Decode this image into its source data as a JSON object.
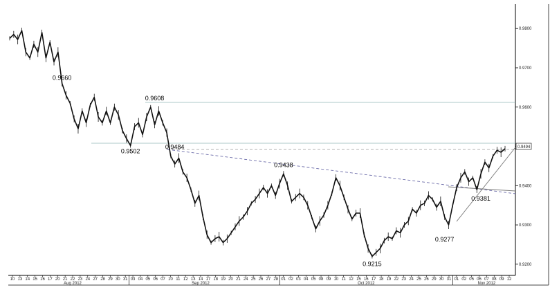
{
  "chart_data": {
    "type": "line",
    "yticks": [
      "0.9200",
      "0.9300",
      "0.9400",
      "0.9500",
      "0.9600",
      "0.9700",
      "0.9800"
    ],
    "ylim": [
      0.9175,
      0.9855
    ],
    "current_price_label": "0.9494",
    "x_day_labels": [
      "10",
      "13",
      "14",
      "15",
      "16",
      "17",
      "20",
      "21",
      "22",
      "23",
      "24",
      "27",
      "28",
      "29",
      "30",
      "31",
      "03",
      "04",
      "05",
      "06",
      "07",
      "10",
      "11",
      "12",
      "13",
      "14",
      "17",
      "18",
      "19",
      "20",
      "21",
      "24",
      "25",
      "26",
      "27",
      "28",
      "01",
      "02",
      "03",
      "04",
      "05",
      "08",
      "09",
      "10",
      "11",
      "12",
      "15",
      "16",
      "17",
      "18",
      "19",
      "22",
      "23",
      "24",
      "25",
      "26",
      "29",
      "30",
      "31",
      "01",
      "02",
      "05",
      "06",
      "07",
      "08",
      "09",
      "12"
    ],
    "x_month_labels": [
      {
        "label": "Aug 2012",
        "at_index": 8
      },
      {
        "label": "Sep 2012",
        "at_index": 25
      },
      {
        "label": "Oct 2012",
        "at_index": 47
      },
      {
        "label": "Nov 2012",
        "at_index": 63
      }
    ],
    "month_separator_indices": [
      15.5,
      35.5,
      58.5
    ],
    "series": [
      {
        "values": [
          [
            0,
            0.9775
          ],
          [
            1,
            0.9785
          ],
          [
            2,
            0.9772
          ],
          [
            3,
            0.9795
          ],
          [
            4,
            0.974
          ],
          [
            5,
            0.9725
          ],
          [
            6,
            0.976
          ],
          [
            7,
            0.974
          ],
          [
            8,
            0.979
          ],
          [
            9,
            0.9725
          ],
          [
            10,
            0.9765
          ],
          [
            11,
            0.9715
          ],
          [
            12,
            0.974
          ],
          [
            13,
            0.966
          ],
          [
            14,
            0.963
          ],
          [
            15,
            0.961
          ],
          [
            16,
            0.957
          ],
          [
            17,
            0.9545
          ],
          [
            18,
            0.959
          ],
          [
            19,
            0.956
          ],
          [
            20,
            0.9605
          ],
          [
            21,
            0.9625
          ],
          [
            22,
            0.9575
          ],
          [
            23,
            0.956
          ],
          [
            24,
            0.959
          ],
          [
            25,
            0.956
          ],
          [
            26,
            0.96
          ],
          [
            27,
            0.958
          ],
          [
            28,
            0.954
          ],
          [
            29,
            0.952
          ],
          [
            30,
            0.9502
          ],
          [
            31,
            0.955
          ],
          [
            32,
            0.956
          ],
          [
            33,
            0.953
          ],
          [
            34,
            0.9575
          ],
          [
            35,
            0.96
          ],
          [
            36,
            0.9555
          ],
          [
            37,
            0.959
          ],
          [
            38,
            0.956
          ],
          [
            39,
            0.9535
          ],
          [
            40,
            0.9475
          ],
          [
            41,
            0.9455
          ],
          [
            42,
            0.947
          ],
          [
            43,
            0.9435
          ],
          [
            44,
            0.942
          ],
          [
            45,
            0.939
          ],
          [
            46,
            0.9355
          ],
          [
            47,
            0.9375
          ],
          [
            48,
            0.932
          ],
          [
            49,
            0.9275
          ],
          [
            50,
            0.9255
          ],
          [
            51,
            0.9265
          ],
          [
            52,
            0.927
          ],
          [
            53,
            0.9255
          ],
          [
            54,
            0.9265
          ],
          [
            55,
            0.928
          ],
          [
            56,
            0.9295
          ],
          [
            57,
            0.931
          ],
          [
            58,
            0.932
          ],
          [
            59,
            0.9335
          ],
          [
            60,
            0.9355
          ],
          [
            61,
            0.9365
          ],
          [
            62,
            0.938
          ],
          [
            63,
            0.9395
          ],
          [
            64,
            0.938
          ],
          [
            65,
            0.94
          ],
          [
            66,
            0.9375
          ],
          [
            67,
            0.9405
          ],
          [
            68,
            0.943
          ],
          [
            69,
            0.94
          ],
          [
            70,
            0.936
          ],
          [
            71,
            0.937
          ],
          [
            72,
            0.938
          ],
          [
            73,
            0.937
          ],
          [
            74,
            0.935
          ],
          [
            75,
            0.932
          ],
          [
            76,
            0.929
          ],
          [
            77,
            0.931
          ],
          [
            78,
            0.9325
          ],
          [
            79,
            0.935
          ],
          [
            80,
            0.938
          ],
          [
            81,
            0.942
          ],
          [
            82,
            0.94
          ],
          [
            83,
            0.937
          ],
          [
            84,
            0.934
          ],
          [
            85,
            0.9315
          ],
          [
            86,
            0.933
          ],
          [
            87,
            0.933
          ],
          [
            88,
            0.9275
          ],
          [
            89,
            0.924
          ],
          [
            90,
            0.922
          ],
          [
            91,
            0.923
          ],
          [
            92,
            0.924
          ],
          [
            93,
            0.926
          ],
          [
            94,
            0.927
          ],
          [
            95,
            0.9265
          ],
          [
            96,
            0.9285
          ],
          [
            97,
            0.928
          ],
          [
            98,
            0.93
          ],
          [
            99,
            0.931
          ],
          [
            100,
            0.934
          ],
          [
            101,
            0.933
          ],
          [
            102,
            0.935
          ],
          [
            103,
            0.9355
          ],
          [
            104,
            0.9375
          ],
          [
            105,
            0.9365
          ],
          [
            106,
            0.9345
          ],
          [
            107,
            0.936
          ],
          [
            108,
            0.932
          ],
          [
            109,
            0.93
          ],
          [
            110,
            0.935
          ],
          [
            111,
            0.9395
          ],
          [
            112,
            0.942
          ],
          [
            113,
            0.9435
          ],
          [
            114,
            0.941
          ],
          [
            115,
            0.942
          ],
          [
            116,
            0.939
          ],
          [
            117,
            0.943
          ],
          [
            118,
            0.946
          ],
          [
            119,
            0.9445
          ],
          [
            120,
            0.9475
          ],
          [
            121,
            0.949
          ],
          [
            122,
            0.9485
          ],
          [
            123,
            0.9494
          ]
        ]
      }
    ],
    "swing_labels": [
      {
        "text": "0.9660",
        "x": 13,
        "y": 0.966
      },
      {
        "text": "0.9608",
        "x": 36,
        "y": 0.9608
      },
      {
        "text": "0.9502",
        "x": 30,
        "y": 0.9502
      },
      {
        "text": "0.9484",
        "x": 41,
        "y": 0.9484
      },
      {
        "text": "0.9438",
        "x": 68,
        "y": 0.9438
      },
      {
        "text": "0.9215",
        "x": 90,
        "y": 0.9215
      },
      {
        "text": "0.9277",
        "x": 108,
        "y": 0.9277
      },
      {
        "text": "0.9381",
        "x": 117,
        "y": 0.9381
      }
    ]
  }
}
